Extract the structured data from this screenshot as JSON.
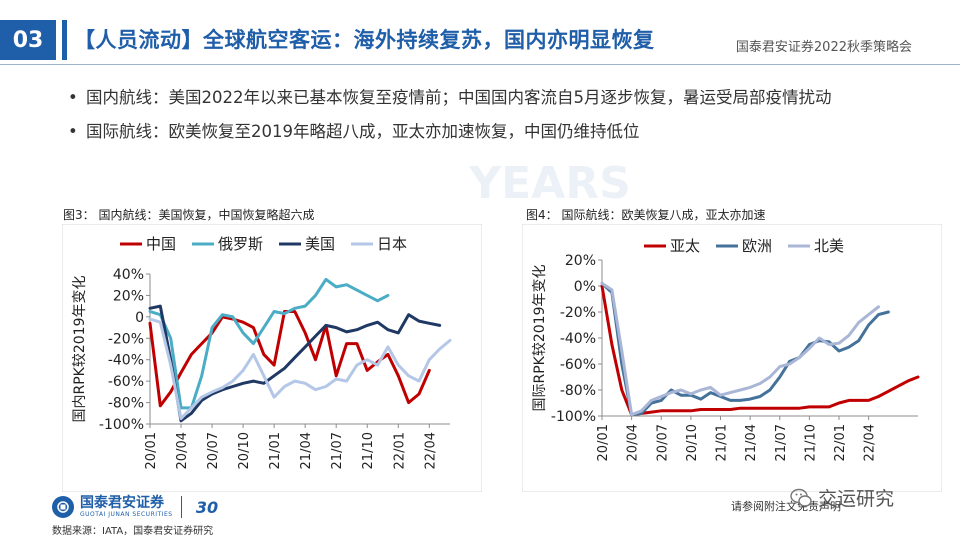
{
  "header": {
    "section_number": "03",
    "title": "【人员流动】全球航空客运：海外持续复苏，国内亦明显恢复",
    "report_name": "国泰君安证券2022秋季策略会"
  },
  "bullets": [
    {
      "marker": "•",
      "text": "国内航线：美国2022年以来已基本恢复至疫情前；中国国内客流自5月逐步恢复，暑运受局部疫情扰动"
    },
    {
      "marker": "•",
      "text": "国际航线：欧美恢复至2019年略超八成，亚太亦加速恢复，中国仍维持低位"
    }
  ],
  "watermark": {
    "text": "YEARS"
  },
  "footer": {
    "logo_cn": "国泰君安证券",
    "logo_en": "GUOTAI JUNAN SECURITIES",
    "logo_badge": "30",
    "source": "数据来源：IATA，国泰君安证券研究",
    "disclaimer": "请参阅附注文免责声明",
    "wechat_name": "交运研究"
  },
  "colors": {
    "brand_blue": "#1f5ea8",
    "china": "#c00000",
    "russia": "#4bacc6",
    "usa": "#1f3864",
    "japan": "#b4c7e7",
    "apac": "#c00000",
    "europe": "#44729b",
    "north_america": "#a9b6d6"
  },
  "chart_data": [
    {
      "type": "line",
      "figure_label": "图3：",
      "title": "国内航线：美国恢复，中国恢复略超六成",
      "ylabel": "国内RPK较2019年变化",
      "ylim": [
        -100,
        40
      ],
      "yticks": [
        -100,
        -80,
        -60,
        -40,
        -20,
        0,
        20,
        40
      ],
      "ytick_labels": [
        "-100%",
        "-80%",
        "-60%",
        "-40%",
        "-20%",
        "0",
        "20%",
        "40%"
      ],
      "x_tick_labels": [
        "20/01",
        "20/04",
        "20/07",
        "20/10",
        "21/01",
        "21/04",
        "21/07",
        "21/10",
        "22/01",
        "22/04"
      ],
      "x_tick_index": [
        0,
        3,
        6,
        9,
        12,
        15,
        18,
        21,
        24,
        27
      ],
      "legend_position": "top",
      "series": [
        {
          "name": "中国",
          "color": "#c00000",
          "values": [
            -6,
            -83,
            -70,
            -52,
            -35,
            -25,
            -15,
            0,
            -2,
            -5,
            -10,
            -35,
            -45,
            5,
            5,
            -15,
            -40,
            -8,
            -55,
            -25,
            -25,
            -50,
            -42,
            -35,
            -55,
            -80,
            -72,
            -50
          ]
        },
        {
          "name": "俄罗斯",
          "color": "#4bacc6",
          "values": [
            5,
            2,
            -20,
            -85,
            -85,
            -55,
            -10,
            2,
            0,
            -15,
            -25,
            -10,
            5,
            3,
            8,
            10,
            20,
            35,
            28,
            30,
            25,
            20,
            15,
            20
          ]
        },
        {
          "name": "美国",
          "color": "#1f3864",
          "values": [
            8,
            10,
            -40,
            -97,
            -90,
            -78,
            -72,
            -68,
            -65,
            -62,
            -60,
            -62,
            -55,
            -48,
            -38,
            -28,
            -18,
            -8,
            -10,
            -14,
            -12,
            -8,
            -5,
            -12,
            -15,
            2,
            -4,
            -6,
            -8
          ]
        },
        {
          "name": "日本",
          "color": "#b4c7e7",
          "values": [
            -2,
            -5,
            -45,
            -95,
            -85,
            -75,
            -70,
            -66,
            -60,
            -50,
            -35,
            -55,
            -75,
            -65,
            -60,
            -62,
            -68,
            -65,
            -58,
            -60,
            -45,
            -40,
            -45,
            -28,
            -45,
            -55,
            -60,
            -40,
            -30,
            -22
          ]
        }
      ]
    },
    {
      "type": "line",
      "figure_label": "图4：",
      "title": "国际航线：欧美恢复八成，亚太亦加速",
      "ylabel": "国际RPK较2019年变化",
      "ylim": [
        -100,
        20
      ],
      "yticks": [
        -100,
        -80,
        -60,
        -40,
        -20,
        0,
        20
      ],
      "ytick_labels": [
        "-100%",
        "-80%",
        "-60%",
        "-40%",
        "-20%",
        "0%",
        "20%"
      ],
      "x_tick_labels": [
        "20/01",
        "20/04",
        "20/07",
        "20/10",
        "21/01",
        "21/04",
        "21/07",
        "21/10",
        "22/01",
        "22/04"
      ],
      "x_tick_index": [
        0,
        3,
        6,
        9,
        12,
        15,
        18,
        21,
        24,
        27
      ],
      "legend_position": "top",
      "series": [
        {
          "name": "亚太",
          "color": "#c00000",
          "values": [
            0,
            -45,
            -80,
            -99,
            -98,
            -97,
            -96,
            -96,
            -96,
            -96,
            -95,
            -95,
            -95,
            -95,
            -94,
            -94,
            -94,
            -94,
            -94,
            -94,
            -94,
            -93,
            -93,
            -93,
            -90,
            -88,
            -88,
            -88,
            -85,
            -81,
            -77,
            -73,
            -70
          ]
        },
        {
          "name": "欧洲",
          "color": "#44729b",
          "values": [
            2,
            -5,
            -60,
            -99,
            -98,
            -90,
            -88,
            -80,
            -84,
            -84,
            -87,
            -82,
            -85,
            -88,
            -88,
            -87,
            -85,
            -80,
            -70,
            -58,
            -55,
            -45,
            -42,
            -43,
            -50,
            -47,
            -42,
            -30,
            -22,
            -20
          ]
        },
        {
          "name": "北美",
          "color": "#a9b6d6",
          "values": [
            2,
            -3,
            -50,
            -99,
            -96,
            -88,
            -85,
            -82,
            -80,
            -83,
            -80,
            -78,
            -84,
            -82,
            -80,
            -78,
            -75,
            -70,
            -62,
            -60,
            -55,
            -48,
            -40,
            -45,
            -44,
            -38,
            -28,
            -22,
            -16
          ]
        }
      ]
    }
  ]
}
